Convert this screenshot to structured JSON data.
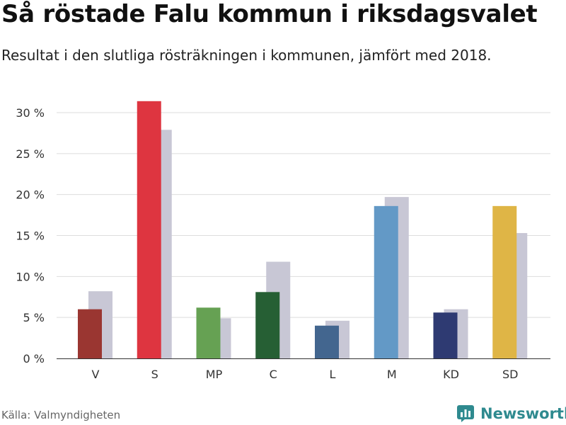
{
  "title": "Så röstade Falu kommun i riksdagsvalet",
  "subtitle": "Resultat i den slutliga rösträkningen i kommunen, jämfört med 2018.",
  "source": "Källa: Valmyndigheten",
  "brand": {
    "name": "Newsworthy",
    "icon": "newsworthy-logo-icon",
    "color": "#2f8a8f"
  },
  "chart_data": {
    "type": "bar",
    "title": "Så röstade Falu kommun i riksdagsvalet",
    "subtitle": "Resultat i den slutliga rösträkningen i kommunen, jämfört med 2018.",
    "categories": [
      "V",
      "S",
      "MP",
      "C",
      "L",
      "M",
      "KD",
      "SD"
    ],
    "values": [
      6.0,
      31.4,
      6.2,
      8.1,
      4.0,
      18.6,
      5.6,
      18.6
    ],
    "values_2018": [
      8.2,
      27.9,
      4.9,
      11.8,
      4.6,
      19.7,
      6.0,
      15.3
    ],
    "colors": [
      "#9a3631",
      "#de3540",
      "#66a153",
      "#265f34",
      "#43668f",
      "#6399c6",
      "#2e3a72",
      "#dfb546"
    ],
    "comparison_color": "#c8c7d5",
    "ylim": [
      0,
      30
    ],
    "yticks": [
      0,
      5,
      10,
      15,
      20,
      25,
      30
    ],
    "ytick_labels": [
      "0 %",
      "5 %",
      "10 %",
      "15 %",
      "20 %",
      "25 %",
      "30 %"
    ],
    "xlabel": "",
    "ylabel": "",
    "grid": true,
    "legend": false
  }
}
